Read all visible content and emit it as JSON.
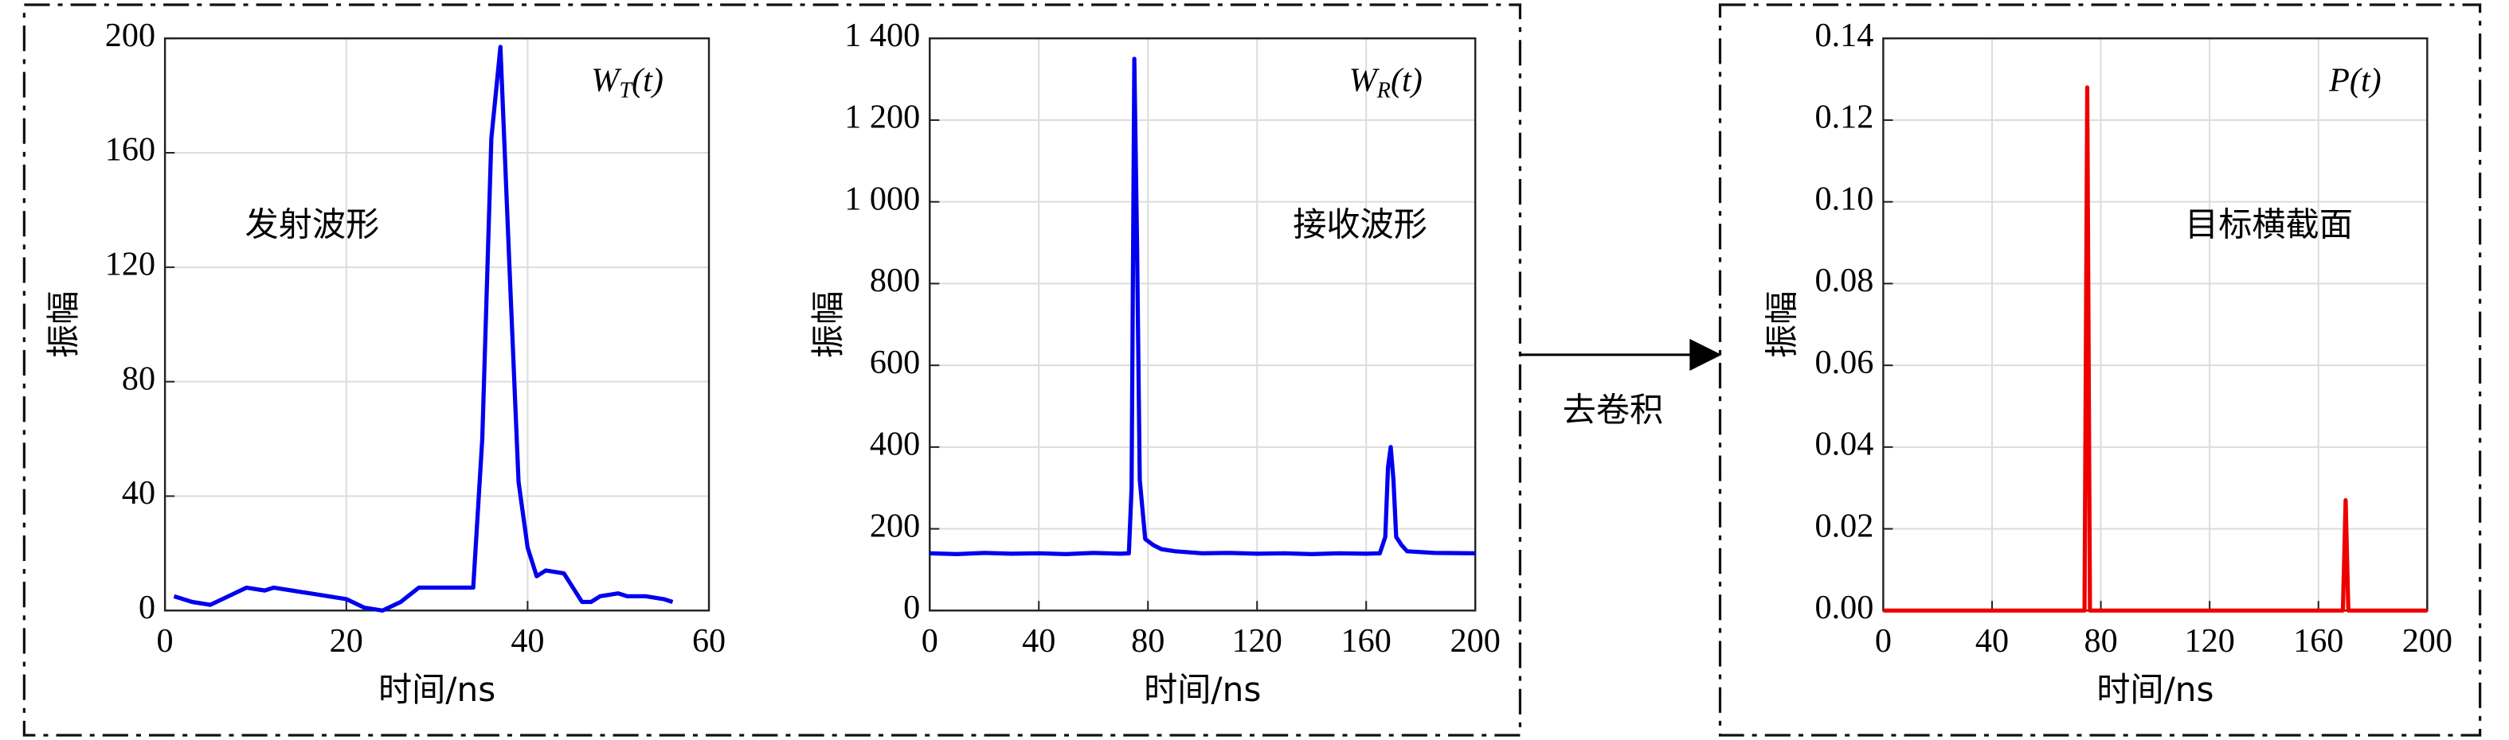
{
  "arrow_label": "去卷积",
  "chart_data": [
    {
      "type": "line",
      "x_label": "时间/ns",
      "y_label": "振幅",
      "annotation": "发射波形",
      "curve_label": {
        "symbol": "W",
        "subscript": "T",
        "arg": "(t)"
      },
      "xlim": [
        0,
        60
      ],
      "xticks": [
        0,
        20,
        40,
        60
      ],
      "ylim": [
        0,
        200
      ],
      "yticks": [
        0,
        40,
        80,
        120,
        160,
        200
      ],
      "grid": true,
      "x": [
        1,
        3,
        5,
        7,
        9,
        11,
        12,
        14,
        16,
        18,
        20,
        22,
        24,
        26,
        28,
        30,
        32,
        34,
        35,
        36,
        37,
        38,
        39,
        40,
        41,
        42,
        44,
        45,
        46,
        47,
        48,
        50,
        51,
        53,
        55,
        56
      ],
      "series": [
        {
          "color": "#0000ee",
          "values": [
            5,
            3,
            2,
            5,
            8,
            7,
            8,
            7,
            6,
            5,
            4,
            1,
            0,
            3,
            8,
            8,
            8,
            8,
            60,
            165,
            197,
            120,
            45,
            22,
            12,
            14,
            13,
            8,
            3,
            3,
            5,
            6,
            5,
            5,
            4,
            3
          ]
        }
      ]
    },
    {
      "type": "line",
      "x_label": "时间/ns",
      "y_label": "振幅",
      "annotation": "接收波形",
      "curve_label": {
        "symbol": "W",
        "subscript": "R",
        "arg": "(t)"
      },
      "xlim": [
        0,
        200
      ],
      "xticks": [
        0,
        40,
        80,
        120,
        160,
        200
      ],
      "ylim": [
        0,
        1400
      ],
      "yticks": [
        0,
        200,
        400,
        600,
        800,
        {
          "value": 1000,
          "label": "1 000"
        },
        {
          "value": 1200,
          "label": "1 200"
        },
        {
          "value": 1400,
          "label": "1 400"
        }
      ],
      "grid": true,
      "x": [
        0,
        10,
        20,
        30,
        40,
        50,
        60,
        70,
        73,
        74,
        75,
        76,
        77,
        79,
        82,
        85,
        90,
        100,
        110,
        120,
        130,
        140,
        150,
        160,
        165,
        167,
        168,
        169,
        170,
        171,
        173,
        175,
        185,
        200
      ],
      "series": [
        {
          "color": "#0000ee",
          "values": [
            140,
            138,
            141,
            139,
            140,
            138,
            141,
            139,
            140,
            300,
            1350,
            900,
            320,
            175,
            160,
            150,
            145,
            140,
            141,
            139,
            140,
            138,
            140,
            139,
            140,
            180,
            350,
            400,
            320,
            180,
            160,
            145,
            141,
            140
          ]
        }
      ]
    },
    {
      "type": "line",
      "x_label": "时间/ns",
      "y_label": "振幅",
      "annotation": "目标横截面",
      "curve_label": {
        "symbol": "P",
        "arg": "(t)"
      },
      "xlim": [
        0,
        200
      ],
      "xticks": [
        0,
        40,
        80,
        120,
        160,
        200
      ],
      "ylim": [
        0,
        0.14
      ],
      "yticks": [
        {
          "value": 0,
          "label": "0.00"
        },
        0.02,
        0.04,
        0.06,
        0.08,
        {
          "value": 0.1,
          "label": "0.10"
        },
        0.12,
        0.14
      ],
      "grid": true,
      "x": [
        0,
        74,
        75,
        76,
        169,
        170,
        171,
        200
      ],
      "series": [
        {
          "color": "#ee0000",
          "values": [
            0,
            0,
            0.128,
            0,
            0,
            0.027,
            0,
            0
          ]
        }
      ]
    }
  ]
}
